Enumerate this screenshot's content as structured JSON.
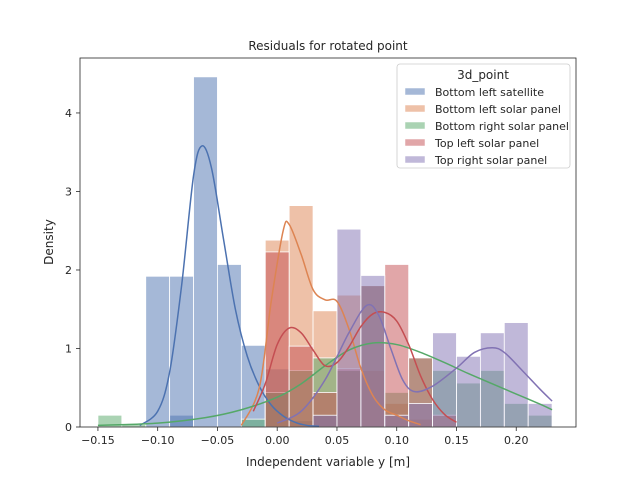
{
  "chart_data": {
    "type": "histogram+kde",
    "title": "Residuals for rotated point",
    "xlabel": "Independent variable y [m]",
    "ylabel": "Density",
    "xlim": [
      -0.165,
      0.25
    ],
    "ylim": [
      0,
      4.7
    ],
    "xticks": [
      -0.15,
      -0.1,
      -0.05,
      0.0,
      0.05,
      0.1,
      0.15,
      0.2
    ],
    "xtick_labels": [
      "−0.15",
      "−0.10",
      "−0.05",
      "0.00",
      "0.05",
      "0.10",
      "0.15",
      "0.20"
    ],
    "yticks": [
      0,
      1,
      2,
      3,
      4
    ],
    "ytick_labels": [
      "0",
      "1",
      "2",
      "3",
      "4"
    ],
    "grid": false,
    "legend": {
      "title": "3d_point",
      "position": "top-right"
    },
    "series": [
      {
        "name": "Bottom left satellite",
        "color": "#4c72b0",
        "bars": [
          [
            -0.09,
            -0.07,
            0.15
          ],
          [
            -0.11,
            -0.09,
            1.92
          ],
          [
            -0.09,
            -0.07,
            1.92
          ],
          [
            -0.07,
            -0.05,
            4.46
          ],
          [
            -0.05,
            -0.03,
            2.07
          ],
          [
            -0.03,
            -0.01,
            1.04
          ],
          [
            -0.01,
            0.01,
            0.74
          ],
          [
            0.01,
            0.03,
            0.08
          ],
          [
            0.03,
            0.05,
            0.15
          ]
        ],
        "kde": [
          [
            -0.115,
            0.02
          ],
          [
            -0.1,
            0.2
          ],
          [
            -0.09,
            0.7
          ],
          [
            -0.08,
            1.8
          ],
          [
            -0.07,
            3.2
          ],
          [
            -0.063,
            3.58
          ],
          [
            -0.055,
            3.3
          ],
          [
            -0.045,
            2.4
          ],
          [
            -0.035,
            1.5
          ],
          [
            -0.025,
            0.9
          ],
          [
            -0.015,
            0.52
          ],
          [
            -0.005,
            0.28
          ],
          [
            0.005,
            0.14
          ],
          [
            0.015,
            0.06
          ],
          [
            0.025,
            0.02
          ],
          [
            0.035,
            0.01
          ]
        ]
      },
      {
        "name": "Bottom left solar panel",
        "color": "#dd8452",
        "bars": [
          [
            -0.01,
            0.01,
            2.38
          ],
          [
            0.01,
            0.03,
            2.82
          ],
          [
            0.03,
            0.05,
            1.48
          ],
          [
            0.05,
            0.07,
            1.68
          ],
          [
            0.07,
            0.09,
            0.72
          ],
          [
            0.09,
            0.11,
            0.3
          ],
          [
            0.11,
            0.13,
            0.1
          ]
        ],
        "kde": [
          [
            -0.03,
            0.02
          ],
          [
            -0.015,
            0.5
          ],
          [
            -0.005,
            1.6
          ],
          [
            0.005,
            2.5
          ],
          [
            0.01,
            2.58
          ],
          [
            0.02,
            2.2
          ],
          [
            0.03,
            1.75
          ],
          [
            0.04,
            1.62
          ],
          [
            0.05,
            1.6
          ],
          [
            0.06,
            1.25
          ],
          [
            0.07,
            0.75
          ],
          [
            0.08,
            0.4
          ],
          [
            0.09,
            0.22
          ],
          [
            0.1,
            0.15
          ],
          [
            0.11,
            0.08
          ],
          [
            0.12,
            0.03
          ]
        ]
      },
      {
        "name": "Bottom right solar panel",
        "color": "#55a868",
        "bars": [
          [
            -0.15,
            -0.13,
            0.15
          ],
          [
            -0.13,
            -0.11,
            0.03
          ],
          [
            -0.03,
            -0.01,
            0.1
          ],
          [
            -0.01,
            0.01,
            0.44
          ],
          [
            0.01,
            0.03,
            0.72
          ],
          [
            0.03,
            0.05,
            0.88
          ],
          [
            0.05,
            0.07,
            0.72
          ],
          [
            0.07,
            0.09,
            1.8
          ],
          [
            0.09,
            0.11,
            0.44
          ],
          [
            0.11,
            0.13,
            0.88
          ],
          [
            0.13,
            0.15,
            0.72
          ],
          [
            0.15,
            0.17,
            0.56
          ],
          [
            0.17,
            0.19,
            0.72
          ],
          [
            0.19,
            0.21,
            0.3
          ],
          [
            0.21,
            0.23,
            0.15
          ]
        ],
        "kde": [
          [
            -0.15,
            0.02
          ],
          [
            -0.1,
            0.05
          ],
          [
            -0.06,
            0.12
          ],
          [
            -0.03,
            0.22
          ],
          [
            0.0,
            0.38
          ],
          [
            0.02,
            0.55
          ],
          [
            0.04,
            0.78
          ],
          [
            0.06,
            0.98
          ],
          [
            0.08,
            1.07
          ],
          [
            0.1,
            1.05
          ],
          [
            0.12,
            0.95
          ],
          [
            0.14,
            0.82
          ],
          [
            0.16,
            0.68
          ],
          [
            0.18,
            0.55
          ],
          [
            0.2,
            0.42
          ],
          [
            0.22,
            0.29
          ],
          [
            0.23,
            0.22
          ]
        ]
      },
      {
        "name": "Top left solar panel",
        "color": "#c44e52",
        "bars": [
          [
            -0.01,
            0.01,
            2.23
          ],
          [
            0.01,
            0.03,
            1.03
          ],
          [
            0.03,
            0.05,
            0.44
          ],
          [
            0.05,
            0.07,
            0.74
          ],
          [
            0.07,
            0.09,
            1.8
          ],
          [
            0.09,
            0.11,
            2.07
          ],
          [
            0.11,
            0.13,
            0.88
          ],
          [
            0.13,
            0.15,
            0.15
          ]
        ],
        "kde": [
          [
            -0.02,
            0.2
          ],
          [
            -0.01,
            0.55
          ],
          [
            0.0,
            1.05
          ],
          [
            0.01,
            1.26
          ],
          [
            0.02,
            1.2
          ],
          [
            0.03,
            0.98
          ],
          [
            0.04,
            0.78
          ],
          [
            0.05,
            0.82
          ],
          [
            0.06,
            1.02
          ],
          [
            0.07,
            1.28
          ],
          [
            0.08,
            1.44
          ],
          [
            0.09,
            1.46
          ],
          [
            0.1,
            1.35
          ],
          [
            0.11,
            1.05
          ],
          [
            0.12,
            0.65
          ],
          [
            0.13,
            0.35
          ],
          [
            0.14,
            0.16
          ],
          [
            0.15,
            0.06
          ]
        ]
      },
      {
        "name": "Top right solar panel",
        "color": "#8172b3",
        "bars": [
          [
            0.03,
            0.05,
            0.15
          ],
          [
            0.05,
            0.07,
            2.52
          ],
          [
            0.07,
            0.09,
            1.93
          ],
          [
            0.09,
            0.11,
            0.15
          ],
          [
            0.11,
            0.13,
            0.3
          ],
          [
            0.13,
            0.15,
            1.2
          ],
          [
            0.15,
            0.17,
            0.9
          ],
          [
            0.17,
            0.19,
            1.2
          ],
          [
            0.19,
            0.21,
            1.33
          ],
          [
            0.21,
            0.23,
            0.3
          ]
        ],
        "kde": [
          [
            0.0,
            0.05
          ],
          [
            0.02,
            0.2
          ],
          [
            0.04,
            0.6
          ],
          [
            0.06,
            1.2
          ],
          [
            0.075,
            1.55
          ],
          [
            0.085,
            1.42
          ],
          [
            0.095,
            1.0
          ],
          [
            0.105,
            0.6
          ],
          [
            0.115,
            0.45
          ],
          [
            0.13,
            0.52
          ],
          [
            0.15,
            0.75
          ],
          [
            0.165,
            0.95
          ],
          [
            0.18,
            1.01
          ],
          [
            0.19,
            0.95
          ],
          [
            0.205,
            0.72
          ],
          [
            0.22,
            0.48
          ],
          [
            0.23,
            0.33
          ]
        ]
      }
    ]
  }
}
